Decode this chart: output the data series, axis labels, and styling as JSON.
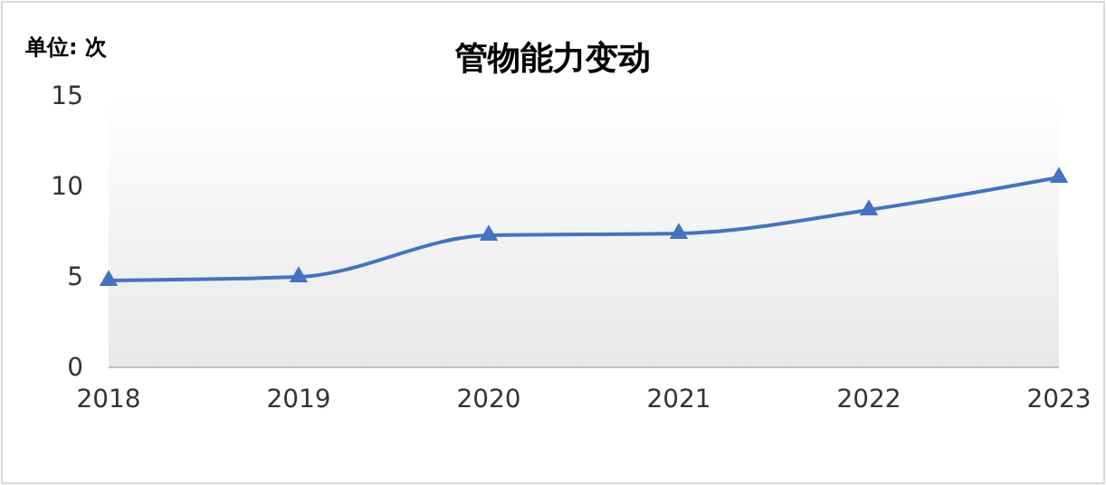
{
  "chart_data": {
    "type": "line",
    "title": "管物能力变动",
    "ylabel": "单位: 次",
    "categories": [
      "2018",
      "2019",
      "2020",
      "2021",
      "2022",
      "2023"
    ],
    "series": [
      {
        "color": "#4472c4",
        "values": [
          4.8,
          5.0,
          7.3,
          7.4,
          8.7,
          10.5
        ]
      }
    ],
    "ylim": [
      0,
      15
    ],
    "yticks": [
      0,
      5,
      10,
      15
    ],
    "grid": false,
    "marker": "triangle",
    "line_style": "solid"
  }
}
